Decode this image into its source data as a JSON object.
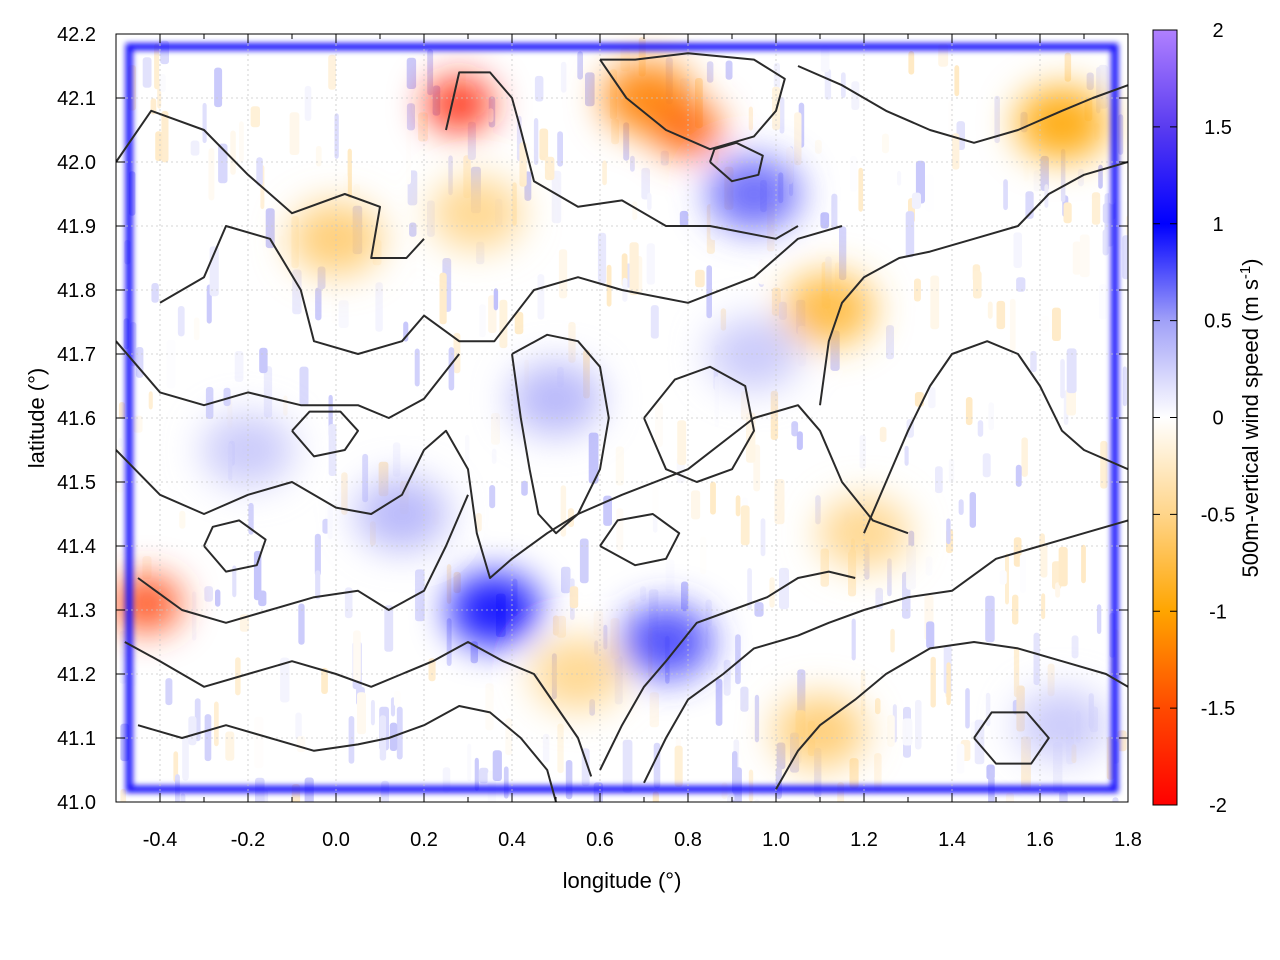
{
  "chart_data": {
    "type": "heatmap",
    "xlabel": "longitude (°)",
    "ylabel": "latitude (°)",
    "colorbar_label_main": "500m-vertical wind speed (m s",
    "colorbar_label_sup": "-1",
    "colorbar_label_close": ")",
    "xlim": [
      -0.5,
      1.8
    ],
    "ylim": [
      41.0,
      42.2
    ],
    "x_ticks": [
      "-0.4",
      "-0.2",
      "0.0",
      "0.2",
      "0.4",
      "0.6",
      "0.8",
      "1.0",
      "1.2",
      "1.4",
      "1.6",
      "1.8"
    ],
    "y_ticks": [
      "41.0",
      "41.1",
      "41.2",
      "41.3",
      "41.4",
      "41.5",
      "41.6",
      "41.7",
      "41.8",
      "41.9",
      "42.0",
      "42.1",
      "42.2"
    ],
    "colorbar_range": [
      -2,
      2
    ],
    "colorbar_ticks": [
      "2",
      "1.5",
      "1",
      "0.5",
      "0",
      "-0.5",
      "-1",
      "-1.5",
      "-2"
    ],
    "colormap": [
      {
        "value": -2,
        "color": "#ff0000"
      },
      {
        "value": -1.5,
        "color": "#ff4a00"
      },
      {
        "value": -1,
        "color": "#ffa500"
      },
      {
        "value": -0.5,
        "color": "#ffd58a"
      },
      {
        "value": 0,
        "color": "#ffffff"
      },
      {
        "value": 0.5,
        "color": "#a0a0f8"
      },
      {
        "value": 1,
        "color": "#0000ff"
      },
      {
        "value": 1.5,
        "color": "#5a3cf0"
      },
      {
        "value": 2,
        "color": "#b080ff"
      }
    ],
    "grid": true,
    "overlay": "terrain elevation contours",
    "hotspots": [
      {
        "lon": 0.28,
        "lat": 42.09,
        "value": -1.8
      },
      {
        "lon": 0.71,
        "lat": 42.1,
        "value": -1.2
      },
      {
        "lon": 0.8,
        "lat": 42.05,
        "value": -1.4
      },
      {
        "lon": 1.12,
        "lat": 41.77,
        "value": -0.8
      },
      {
        "lon": -0.43,
        "lat": 41.31,
        "value": -1.6
      },
      {
        "lon": 1.65,
        "lat": 42.06,
        "value": -1.0
      },
      {
        "lon": 0.32,
        "lat": 41.92,
        "value": -0.5
      },
      {
        "lon": 0.0,
        "lat": 41.88,
        "value": -0.6
      },
      {
        "lon": 1.2,
        "lat": 41.42,
        "value": -0.5
      },
      {
        "lon": 1.1,
        "lat": 41.11,
        "value": -0.6
      },
      {
        "lon": 0.55,
        "lat": 41.2,
        "value": -0.5
      },
      {
        "lon": 0.5,
        "lat": 41.63,
        "value": 0.4
      },
      {
        "lon": 0.95,
        "lat": 41.7,
        "value": 0.3
      },
      {
        "lon": 0.95,
        "lat": 41.95,
        "value": 0.7
      },
      {
        "lon": 0.75,
        "lat": 41.25,
        "value": 0.8
      },
      {
        "lon": 0.36,
        "lat": 41.3,
        "value": 1.0
      },
      {
        "lon": 1.65,
        "lat": 41.12,
        "value": 0.3
      },
      {
        "lon": -0.2,
        "lat": 41.55,
        "value": 0.3
      },
      {
        "lon": 0.15,
        "lat": 41.45,
        "value": 0.4
      }
    ],
    "domain_border": {
      "lon": [
        -0.47,
        1.77
      ],
      "lat": [
        41.02,
        42.18
      ],
      "value": 1.1
    },
    "contours": [
      [
        [
          -0.5,
          42.0
        ],
        [
          -0.42,
          42.08
        ],
        [
          -0.3,
          42.05
        ],
        [
          -0.2,
          41.98
        ],
        [
          -0.1,
          41.92
        ],
        [
          0.02,
          41.95
        ],
        [
          0.1,
          41.93
        ],
        [
          0.08,
          41.85
        ],
        [
          0.16,
          41.85
        ],
        [
          0.2,
          41.88
        ]
      ],
      [
        [
          0.25,
          42.05
        ],
        [
          0.28,
          42.14
        ],
        [
          0.35,
          42.14
        ],
        [
          0.4,
          42.1
        ],
        [
          0.42,
          42.05
        ],
        [
          0.45,
          41.97
        ],
        [
          0.55,
          41.93
        ],
        [
          0.65,
          41.94
        ],
        [
          0.75,
          41.9
        ],
        [
          0.85,
          41.9
        ],
        [
          1.0,
          41.88
        ],
        [
          1.05,
          41.9
        ]
      ],
      [
        [
          0.6,
          42.16
        ],
        [
          0.66,
          42.1
        ],
        [
          0.75,
          42.05
        ],
        [
          0.85,
          42.02
        ],
        [
          0.95,
          42.04
        ],
        [
          1.0,
          42.08
        ],
        [
          1.02,
          42.13
        ],
        [
          0.95,
          42.16
        ],
        [
          0.8,
          42.17
        ],
        [
          0.68,
          42.16
        ],
        [
          0.6,
          42.16
        ]
      ],
      [
        [
          -0.4,
          41.78
        ],
        [
          -0.3,
          41.82
        ],
        [
          -0.25,
          41.9
        ],
        [
          -0.15,
          41.88
        ],
        [
          -0.08,
          41.8
        ],
        [
          -0.05,
          41.72
        ],
        [
          0.05,
          41.7
        ],
        [
          0.15,
          41.72
        ],
        [
          0.2,
          41.76
        ],
        [
          0.28,
          41.72
        ],
        [
          0.36,
          41.72
        ],
        [
          0.45,
          41.8
        ],
        [
          0.55,
          41.82
        ],
        [
          0.65,
          41.8
        ],
        [
          0.8,
          41.78
        ],
        [
          0.95,
          41.82
        ],
        [
          1.05,
          41.88
        ],
        [
          1.15,
          41.9
        ]
      ],
      [
        [
          -0.5,
          41.72
        ],
        [
          -0.4,
          41.64
        ],
        [
          -0.3,
          41.62
        ],
        [
          -0.2,
          41.64
        ],
        [
          -0.08,
          41.62
        ],
        [
          0.05,
          41.62
        ],
        [
          0.12,
          41.6
        ],
        [
          0.2,
          41.63
        ],
        [
          0.28,
          41.7
        ]
      ],
      [
        [
          -0.5,
          41.55
        ],
        [
          -0.4,
          41.48
        ],
        [
          -0.3,
          41.45
        ],
        [
          -0.2,
          41.48
        ],
        [
          -0.1,
          41.5
        ],
        [
          0.0,
          41.46
        ],
        [
          0.08,
          41.45
        ],
        [
          0.15,
          41.48
        ],
        [
          0.2,
          41.55
        ],
        [
          0.25,
          41.58
        ],
        [
          0.3,
          41.52
        ],
        [
          0.32,
          41.42
        ],
        [
          0.35,
          41.35
        ],
        [
          0.4,
          41.38
        ],
        [
          0.48,
          41.42
        ],
        [
          0.55,
          41.45
        ],
        [
          0.65,
          41.48
        ],
        [
          0.8,
          41.52
        ],
        [
          0.95,
          41.6
        ],
        [
          1.05,
          41.62
        ],
        [
          1.1,
          41.58
        ],
        [
          1.15,
          41.5
        ],
        [
          1.22,
          41.44
        ],
        [
          1.3,
          41.42
        ]
      ],
      [
        [
          -0.45,
          41.35
        ],
        [
          -0.35,
          41.3
        ],
        [
          -0.25,
          41.28
        ],
        [
          -0.15,
          41.3
        ],
        [
          -0.05,
          41.32
        ],
        [
          0.05,
          41.33
        ],
        [
          0.12,
          41.3
        ],
        [
          0.2,
          41.33
        ],
        [
          0.25,
          41.4
        ],
        [
          0.3,
          41.48
        ]
      ],
      [
        [
          -0.48,
          41.25
        ],
        [
          -0.4,
          41.22
        ],
        [
          -0.3,
          41.18
        ],
        [
          -0.2,
          41.2
        ],
        [
          -0.1,
          41.22
        ],
        [
          0.0,
          41.2
        ],
        [
          0.08,
          41.18
        ],
        [
          0.15,
          41.2
        ],
        [
          0.22,
          41.22
        ],
        [
          0.3,
          41.25
        ],
        [
          0.38,
          41.22
        ],
        [
          0.45,
          41.2
        ],
        [
          0.5,
          41.15
        ],
        [
          0.55,
          41.1
        ],
        [
          0.58,
          41.04
        ]
      ],
      [
        [
          -0.45,
          41.12
        ],
        [
          -0.35,
          41.1
        ],
        [
          -0.25,
          41.12
        ],
        [
          -0.15,
          41.1
        ],
        [
          -0.05,
          41.08
        ],
        [
          0.05,
          41.09
        ],
        [
          0.12,
          41.1
        ],
        [
          0.2,
          41.12
        ],
        [
          0.28,
          41.15
        ],
        [
          0.35,
          41.14
        ],
        [
          0.42,
          41.1
        ],
        [
          0.48,
          41.05
        ],
        [
          0.5,
          41.0
        ]
      ],
      [
        [
          0.6,
          41.05
        ],
        [
          0.65,
          41.12
        ],
        [
          0.7,
          41.18
        ],
        [
          0.75,
          41.22
        ],
        [
          0.82,
          41.28
        ],
        [
          0.9,
          41.3
        ],
        [
          0.98,
          41.32
        ],
        [
          1.05,
          41.35
        ],
        [
          1.12,
          41.36
        ],
        [
          1.18,
          41.35
        ]
      ],
      [
        [
          0.7,
          41.03
        ],
        [
          0.75,
          41.1
        ],
        [
          0.8,
          41.16
        ],
        [
          0.88,
          41.2
        ],
        [
          0.95,
          41.24
        ],
        [
          1.05,
          41.26
        ],
        [
          1.12,
          41.28
        ],
        [
          1.2,
          41.3
        ],
        [
          1.3,
          41.32
        ],
        [
          1.4,
          41.33
        ],
        [
          1.5,
          41.38
        ],
        [
          1.6,
          41.4
        ],
        [
          1.7,
          41.42
        ],
        [
          1.8,
          41.44
        ]
      ],
      [
        [
          1.0,
          41.02
        ],
        [
          1.05,
          41.08
        ],
        [
          1.1,
          41.12
        ],
        [
          1.18,
          41.16
        ],
        [
          1.25,
          41.2
        ],
        [
          1.35,
          41.24
        ],
        [
          1.45,
          41.25
        ],
        [
          1.55,
          41.24
        ],
        [
          1.65,
          41.22
        ],
        [
          1.75,
          41.2
        ],
        [
          1.8,
          41.18
        ]
      ],
      [
        [
          1.1,
          41.62
        ],
        [
          1.12,
          41.72
        ],
        [
          1.15,
          41.78
        ],
        [
          1.2,
          41.82
        ],
        [
          1.28,
          41.85
        ],
        [
          1.35,
          41.86
        ],
        [
          1.45,
          41.88
        ],
        [
          1.55,
          41.9
        ],
        [
          1.62,
          41.95
        ],
        [
          1.7,
          41.98
        ],
        [
          1.8,
          42.0
        ]
      ],
      [
        [
          1.2,
          41.42
        ],
        [
          1.25,
          41.5
        ],
        [
          1.3,
          41.58
        ],
        [
          1.35,
          41.65
        ],
        [
          1.4,
          41.7
        ],
        [
          1.48,
          41.72
        ],
        [
          1.55,
          41.7
        ],
        [
          1.6,
          41.65
        ],
        [
          1.65,
          41.58
        ],
        [
          1.7,
          41.55
        ],
        [
          1.8,
          41.52
        ]
      ],
      [
        [
          1.05,
          42.15
        ],
        [
          1.15,
          42.12
        ],
        [
          1.25,
          42.08
        ],
        [
          1.35,
          42.05
        ],
        [
          1.45,
          42.03
        ],
        [
          1.55,
          42.05
        ],
        [
          1.65,
          42.08
        ],
        [
          1.72,
          42.1
        ],
        [
          1.8,
          42.12
        ]
      ],
      [
        [
          0.4,
          41.7
        ],
        [
          0.42,
          41.6
        ],
        [
          0.44,
          41.52
        ],
        [
          0.46,
          41.45
        ],
        [
          0.5,
          41.42
        ],
        [
          0.55,
          41.45
        ],
        [
          0.6,
          41.52
        ],
        [
          0.62,
          41.6
        ],
        [
          0.6,
          41.68
        ],
        [
          0.55,
          41.72
        ],
        [
          0.48,
          41.73
        ],
        [
          0.4,
          41.7
        ]
      ],
      [
        [
          0.7,
          41.6
        ],
        [
          0.75,
          41.52
        ],
        [
          0.82,
          41.5
        ],
        [
          0.9,
          41.52
        ],
        [
          0.95,
          41.58
        ],
        [
          0.93,
          41.65
        ],
        [
          0.85,
          41.68
        ],
        [
          0.77,
          41.66
        ],
        [
          0.7,
          41.6
        ]
      ],
      [
        [
          -0.1,
          41.58
        ],
        [
          -0.05,
          41.54
        ],
        [
          0.02,
          41.55
        ],
        [
          0.05,
          41.58
        ],
        [
          0.01,
          41.61
        ],
        [
          -0.06,
          41.61
        ],
        [
          -0.1,
          41.58
        ]
      ],
      [
        [
          0.6,
          41.4
        ],
        [
          0.68,
          41.37
        ],
        [
          0.75,
          41.38
        ],
        [
          0.78,
          41.42
        ],
        [
          0.72,
          41.45
        ],
        [
          0.64,
          41.44
        ],
        [
          0.6,
          41.4
        ]
      ],
      [
        [
          1.45,
          41.1
        ],
        [
          1.5,
          41.06
        ],
        [
          1.58,
          41.06
        ],
        [
          1.62,
          41.1
        ],
        [
          1.57,
          41.14
        ],
        [
          1.49,
          41.14
        ],
        [
          1.45,
          41.1
        ]
      ],
      [
        [
          -0.3,
          41.4
        ],
        [
          -0.25,
          41.36
        ],
        [
          -0.18,
          41.37
        ],
        [
          -0.16,
          41.41
        ],
        [
          -0.22,
          41.44
        ],
        [
          -0.28,
          41.43
        ],
        [
          -0.3,
          41.4
        ]
      ],
      [
        [
          0.85,
          42.0
        ],
        [
          0.9,
          41.97
        ],
        [
          0.96,
          41.98
        ],
        [
          0.97,
          42.01
        ],
        [
          0.91,
          42.03
        ],
        [
          0.86,
          42.02
        ],
        [
          0.85,
          42.0
        ]
      ]
    ]
  }
}
